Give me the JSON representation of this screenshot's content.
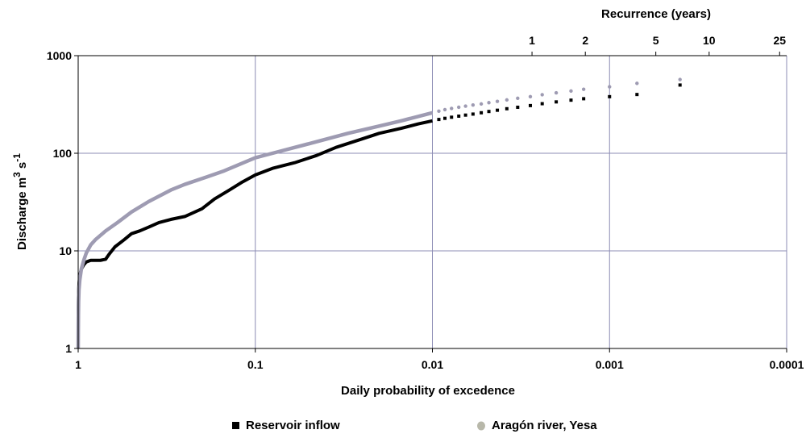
{
  "chart_data": {
    "type": "scatter",
    "x_scale": "log",
    "x_reversed": true,
    "y_scale": "log",
    "xlim": [
      1,
      0.0001
    ],
    "ylim": [
      1,
      1000
    ],
    "xlabel": "Daily probability of excedence",
    "ylabel": "Discharge m3 s-1",
    "ylabel_parts": {
      "text": "Discharge m",
      "sup1": "3",
      "mid": " s",
      "sup2": "-1"
    },
    "x_ticks": [
      {
        "value": 1,
        "label": "1"
      },
      {
        "value": 0.1,
        "label": "0.1"
      },
      {
        "value": 0.01,
        "label": "0.01"
      },
      {
        "value": 0.001,
        "label": "0.001"
      },
      {
        "value": 0.0001,
        "label": "0.0001"
      }
    ],
    "y_ticks": [
      {
        "value": 1,
        "label": "1"
      },
      {
        "value": 10,
        "label": "10"
      },
      {
        "value": 100,
        "label": "100"
      },
      {
        "value": 1000,
        "label": "1000"
      }
    ],
    "top_axis": {
      "label": "Recurrence (years)",
      "ticks": [
        {
          "years": 1,
          "label": "1"
        },
        {
          "years": 2,
          "label": "2"
        },
        {
          "years": 5,
          "label": "5"
        },
        {
          "years": 10,
          "label": "10"
        },
        {
          "years": 25,
          "label": "25"
        }
      ]
    },
    "grid": true,
    "legend_position": "bottom",
    "series": [
      {
        "name": "Reservoir inflow",
        "color": "#000000",
        "marker": "square",
        "curve": [
          [
            1,
            1.5
          ],
          [
            0.998,
            2.5
          ],
          [
            0.995,
            3.5
          ],
          [
            0.99,
            4.5
          ],
          [
            0.98,
            5.6
          ],
          [
            0.96,
            6.5
          ],
          [
            0.93,
            7.2
          ],
          [
            0.9,
            7.7
          ],
          [
            0.85,
            8
          ],
          [
            0.75,
            8
          ],
          [
            0.7,
            8.2
          ],
          [
            0.67,
            9.2
          ],
          [
            0.62,
            11
          ],
          [
            0.55,
            13
          ],
          [
            0.5,
            15
          ],
          [
            0.45,
            16
          ],
          [
            0.4,
            17.5
          ],
          [
            0.35,
            19.5
          ],
          [
            0.3,
            21
          ],
          [
            0.25,
            22.5
          ],
          [
            0.2,
            27
          ],
          [
            0.17,
            34
          ],
          [
            0.14,
            42
          ],
          [
            0.12,
            50
          ],
          [
            0.1,
            60
          ],
          [
            0.08,
            70
          ],
          [
            0.06,
            80
          ],
          [
            0.045,
            95
          ],
          [
            0.035,
            115
          ],
          [
            0.025,
            140
          ],
          [
            0.02,
            160
          ],
          [
            0.015,
            180
          ],
          [
            0.012,
            200
          ],
          [
            0.01,
            215
          ]
        ],
        "tail": [
          [
            0.0092,
            222
          ],
          [
            0.0085,
            228
          ],
          [
            0.0078,
            234
          ],
          [
            0.0071,
            240
          ],
          [
            0.0065,
            246
          ],
          [
            0.0059,
            252
          ],
          [
            0.0053,
            260
          ],
          [
            0.0048,
            268
          ],
          [
            0.0043,
            276
          ],
          [
            0.0038,
            286
          ],
          [
            0.0033,
            296
          ],
          [
            0.0028,
            308
          ],
          [
            0.0024,
            322
          ],
          [
            0.002,
            336
          ],
          [
            0.00165,
            350
          ],
          [
            0.0014,
            362
          ],
          [
            0.001,
            380
          ],
          [
            0.0007,
            400
          ],
          [
            0.0004,
            500
          ]
        ]
      },
      {
        "name": "Aragón river, Yesa",
        "color": "#9e9bb2",
        "legend_color": "#b8b8aa",
        "marker": "circle",
        "curve": [
          [
            1,
            1
          ],
          [
            0.998,
            2
          ],
          [
            0.995,
            3
          ],
          [
            0.99,
            4
          ],
          [
            0.98,
            5
          ],
          [
            0.96,
            6.5
          ],
          [
            0.93,
            8
          ],
          [
            0.9,
            9.5
          ],
          [
            0.85,
            11.5
          ],
          [
            0.8,
            13
          ],
          [
            0.7,
            16
          ],
          [
            0.6,
            19.5
          ],
          [
            0.5,
            25
          ],
          [
            0.4,
            32
          ],
          [
            0.3,
            42
          ],
          [
            0.25,
            48
          ],
          [
            0.2,
            55
          ],
          [
            0.15,
            66
          ],
          [
            0.1,
            90
          ],
          [
            0.08,
            100
          ],
          [
            0.05,
            125
          ],
          [
            0.03,
            160
          ],
          [
            0.02,
            190
          ],
          [
            0.015,
            215
          ],
          [
            0.01,
            260
          ]
        ],
        "tail": [
          [
            0.0092,
            270
          ],
          [
            0.0085,
            280
          ],
          [
            0.0078,
            288
          ],
          [
            0.0071,
            296
          ],
          [
            0.0065,
            304
          ],
          [
            0.0059,
            312
          ],
          [
            0.0053,
            320
          ],
          [
            0.0048,
            330
          ],
          [
            0.0043,
            340
          ],
          [
            0.0038,
            352
          ],
          [
            0.0033,
            366
          ],
          [
            0.0028,
            380
          ],
          [
            0.0024,
            398
          ],
          [
            0.002,
            416
          ],
          [
            0.00165,
            434
          ],
          [
            0.0014,
            452
          ],
          [
            0.001,
            480
          ],
          [
            0.0007,
            520
          ],
          [
            0.0004,
            570
          ]
        ]
      }
    ]
  }
}
